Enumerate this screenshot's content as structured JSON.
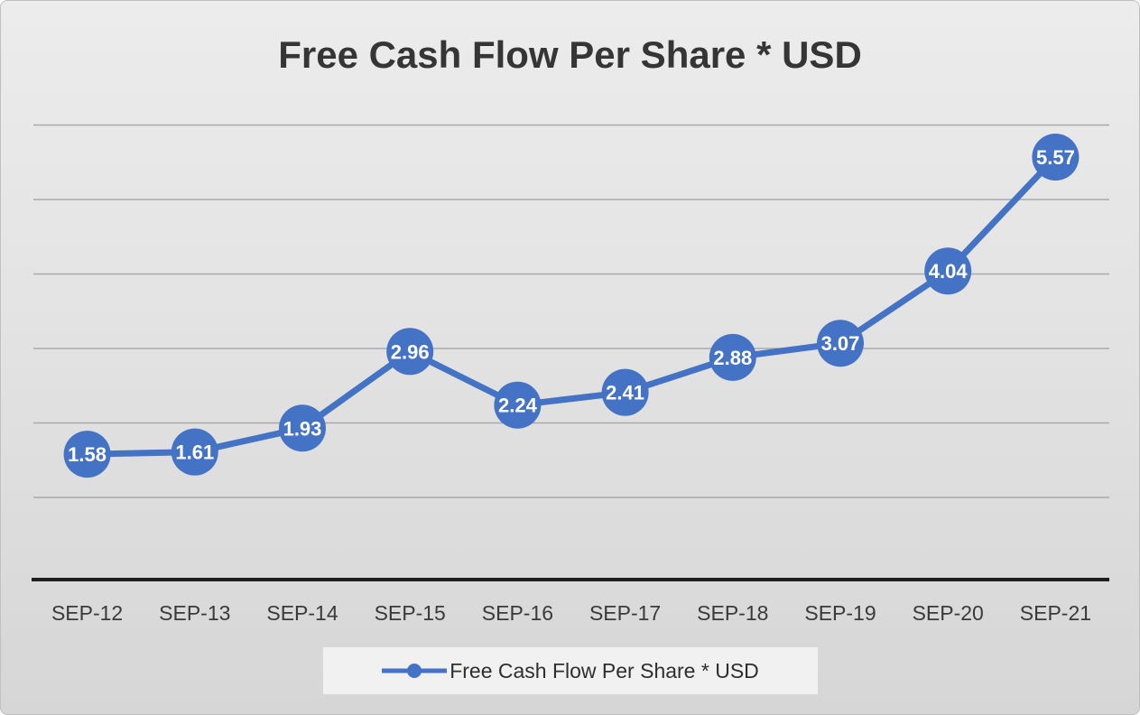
{
  "chart_data": {
    "type": "line",
    "title": "Free Cash Flow Per Share * USD",
    "categories": [
      "SEP-12",
      "SEP-13",
      "SEP-14",
      "SEP-15",
      "SEP-16",
      "SEP-17",
      "SEP-18",
      "SEP-19",
      "SEP-20",
      "SEP-21"
    ],
    "values": [
      1.58,
      1.61,
      1.93,
      2.96,
      2.24,
      2.41,
      2.88,
      3.07,
      4.04,
      5.57
    ],
    "point_labels": [
      "1.58",
      "1.61",
      "1.93",
      "2.96",
      "2.24",
      "2.41",
      "2.88",
      "3.07",
      "4.04",
      "5.57"
    ],
    "xlabel": "",
    "ylabel": "",
    "ylim": [
      0,
      6
    ],
    "gridline_step": 1,
    "grid": "horizontal",
    "legend_position": "bottom",
    "legend_label": "Free Cash Flow Per Share * USD",
    "colors": {
      "line": "#4472c4",
      "marker": "#4472c4",
      "point_label_text": "#ffffff",
      "gridline": "#a9a9a9",
      "axis_line": "#1f1f1f",
      "axis_label_text": "#3a3a3a",
      "title_text": "#353535"
    }
  }
}
